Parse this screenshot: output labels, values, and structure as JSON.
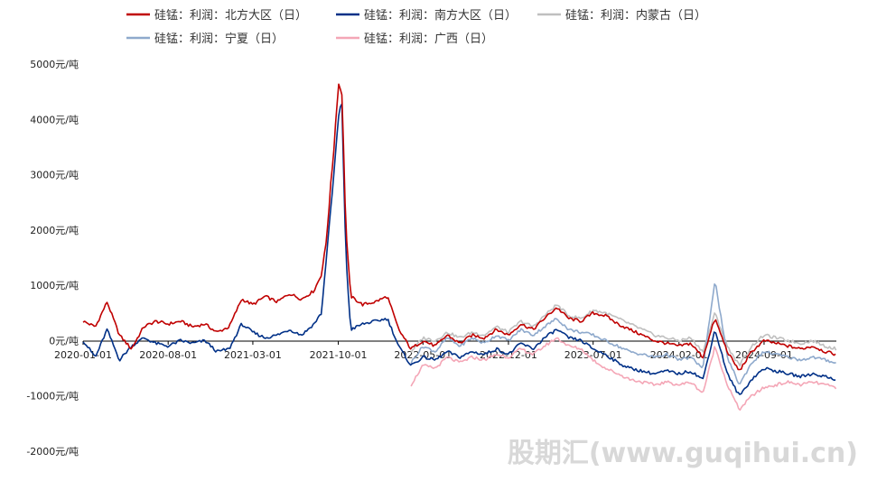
{
  "chart_data": {
    "type": "line",
    "title": "",
    "xlabel": "",
    "ylabel": "",
    "x_tick_labels": [
      "2020-01-01",
      "2020-08-01",
      "2021-03-01",
      "2021-10-01",
      "2022-05-01",
      "2022-12-01",
      "2023-07-01",
      "2024-02-01",
      "2024-09-01"
    ],
    "y_tick_labels": [
      "5000元/吨",
      "4000元/吨",
      "3000元/吨",
      "2000元/吨",
      "1000元/吨",
      "0元/吨",
      "-1000元/吨",
      "-2000元/吨"
    ],
    "ylim": [
      -2000,
      5000
    ],
    "legend_position": "top",
    "watermark": "股期汇(www.guqihui.cn)",
    "series": [
      {
        "name": "硅锰：利润：北方大区（日）",
        "color": "#c00000",
        "start": "2020-01-01",
        "points": [
          [
            "2020-01-01",
            350
          ],
          [
            "2020-02-01",
            250
          ],
          [
            "2020-03-01",
            700
          ],
          [
            "2020-04-01",
            100
          ],
          [
            "2020-05-01",
            -150
          ],
          [
            "2020-06-01",
            250
          ],
          [
            "2020-07-01",
            350
          ],
          [
            "2020-08-01",
            300
          ],
          [
            "2020-09-01",
            350
          ],
          [
            "2020-10-01",
            250
          ],
          [
            "2020-11-01",
            300
          ],
          [
            "2020-12-01",
            150
          ],
          [
            "2021-01-01",
            250
          ],
          [
            "2021-02-01",
            750
          ],
          [
            "2021-03-01",
            650
          ],
          [
            "2021-04-01",
            800
          ],
          [
            "2021-05-01",
            700
          ],
          [
            "2021-06-01",
            850
          ],
          [
            "2021-07-01",
            750
          ],
          [
            "2021-08-01",
            900
          ],
          [
            "2021-08-20",
            1200
          ],
          [
            "2021-09-01",
            1800
          ],
          [
            "2021-09-20",
            3500
          ],
          [
            "2021-10-01",
            4650
          ],
          [
            "2021-10-10",
            4500
          ],
          [
            "2021-10-20",
            2000
          ],
          [
            "2021-11-01",
            800
          ],
          [
            "2021-12-01",
            650
          ],
          [
            "2022-01-01",
            700
          ],
          [
            "2022-02-01",
            800
          ],
          [
            "2022-03-01",
            200
          ],
          [
            "2022-04-01",
            -150
          ],
          [
            "2022-05-01",
            0
          ],
          [
            "2022-06-01",
            -100
          ],
          [
            "2022-07-01",
            100
          ],
          [
            "2022-08-01",
            -50
          ],
          [
            "2022-09-01",
            100
          ],
          [
            "2022-10-01",
            50
          ],
          [
            "2022-11-01",
            200
          ],
          [
            "2022-12-01",
            100
          ],
          [
            "2023-01-01",
            300
          ],
          [
            "2023-02-01",
            200
          ],
          [
            "2023-03-01",
            400
          ],
          [
            "2023-04-01",
            600
          ],
          [
            "2023-05-01",
            400
          ],
          [
            "2023-06-01",
            350
          ],
          [
            "2023-07-01",
            500
          ],
          [
            "2023-08-01",
            450
          ],
          [
            "2023-09-01",
            300
          ],
          [
            "2023-10-01",
            200
          ],
          [
            "2023-11-01",
            100
          ],
          [
            "2023-12-01",
            0
          ],
          [
            "2024-01-01",
            -50
          ],
          [
            "2024-02-01",
            -100
          ],
          [
            "2024-03-01",
            -50
          ],
          [
            "2024-04-01",
            -300
          ],
          [
            "2024-05-01",
            400
          ],
          [
            "2024-06-01",
            -200
          ],
          [
            "2024-07-01",
            -550
          ],
          [
            "2024-08-01",
            -200
          ],
          [
            "2024-09-01",
            0
          ],
          [
            "2024-10-01",
            -50
          ],
          [
            "2024-11-01",
            -100
          ],
          [
            "2024-12-01",
            -150
          ],
          [
            "2025-01-01",
            -100
          ],
          [
            "2025-02-01",
            -200
          ],
          [
            "2025-03-01",
            -250
          ]
        ]
      },
      {
        "name": "硅锰：利润：南方大区（日）",
        "color": "#003087",
        "start": "2020-01-01",
        "points": [
          [
            "2020-01-01",
            0
          ],
          [
            "2020-02-01",
            -300
          ],
          [
            "2020-03-01",
            200
          ],
          [
            "2020-04-01",
            -350
          ],
          [
            "2020-05-01",
            -100
          ],
          [
            "2020-06-01",
            50
          ],
          [
            "2020-07-01",
            -50
          ],
          [
            "2020-08-01",
            -100
          ],
          [
            "2020-09-01",
            0
          ],
          [
            "2020-10-01",
            -50
          ],
          [
            "2020-11-01",
            0
          ],
          [
            "2020-12-01",
            -200
          ],
          [
            "2021-01-01",
            -150
          ],
          [
            "2021-02-01",
            300
          ],
          [
            "2021-03-01",
            150
          ],
          [
            "2021-04-01",
            50
          ],
          [
            "2021-05-01",
            100
          ],
          [
            "2021-06-01",
            200
          ],
          [
            "2021-07-01",
            100
          ],
          [
            "2021-08-01",
            300
          ],
          [
            "2021-08-20",
            500
          ],
          [
            "2021-09-01",
            1500
          ],
          [
            "2021-09-20",
            3000
          ],
          [
            "2021-10-01",
            4000
          ],
          [
            "2021-10-10",
            4300
          ],
          [
            "2021-10-20",
            1500
          ],
          [
            "2021-11-01",
            200
          ],
          [
            "2021-12-01",
            300
          ],
          [
            "2022-01-01",
            350
          ],
          [
            "2022-02-01",
            400
          ],
          [
            "2022-03-01",
            -100
          ],
          [
            "2022-04-01",
            -450
          ],
          [
            "2022-05-01",
            -300
          ],
          [
            "2022-06-01",
            -350
          ],
          [
            "2022-07-01",
            -200
          ],
          [
            "2022-08-01",
            -300
          ],
          [
            "2022-09-01",
            -200
          ],
          [
            "2022-10-01",
            -250
          ],
          [
            "2022-11-01",
            -150
          ],
          [
            "2022-12-01",
            -250
          ],
          [
            "2023-01-01",
            -50
          ],
          [
            "2023-02-01",
            -150
          ],
          [
            "2023-03-01",
            50
          ],
          [
            "2023-04-01",
            200
          ],
          [
            "2023-05-01",
            50
          ],
          [
            "2023-06-01",
            0
          ],
          [
            "2023-07-01",
            -150
          ],
          [
            "2023-08-01",
            -250
          ],
          [
            "2023-09-01",
            -400
          ],
          [
            "2023-10-01",
            -500
          ],
          [
            "2023-11-01",
            -550
          ],
          [
            "2023-12-01",
            -600
          ],
          [
            "2024-01-01",
            -550
          ],
          [
            "2024-02-01",
            -600
          ],
          [
            "2024-03-01",
            -550
          ],
          [
            "2024-04-01",
            -700
          ],
          [
            "2024-05-01",
            200
          ],
          [
            "2024-06-01",
            -600
          ],
          [
            "2024-07-01",
            -1000
          ],
          [
            "2024-08-01",
            -700
          ],
          [
            "2024-09-01",
            -500
          ],
          [
            "2024-10-01",
            -550
          ],
          [
            "2024-11-01",
            -600
          ],
          [
            "2024-12-01",
            -650
          ],
          [
            "2025-01-01",
            -600
          ],
          [
            "2025-02-01",
            -650
          ],
          [
            "2025-03-01",
            -700
          ]
        ]
      },
      {
        "name": "硅锰：利润：内蒙古（日）",
        "color": "#bfbfbf",
        "start": "2022-04-01",
        "points": [
          [
            "2022-04-01",
            -200
          ],
          [
            "2022-05-01",
            50
          ],
          [
            "2022-06-01",
            0
          ],
          [
            "2022-07-01",
            150
          ],
          [
            "2022-08-01",
            50
          ],
          [
            "2022-09-01",
            150
          ],
          [
            "2022-10-01",
            100
          ],
          [
            "2022-11-01",
            250
          ],
          [
            "2022-12-01",
            150
          ],
          [
            "2023-01-01",
            350
          ],
          [
            "2023-02-01",
            250
          ],
          [
            "2023-03-01",
            450
          ],
          [
            "2023-04-01",
            650
          ],
          [
            "2023-05-01",
            450
          ],
          [
            "2023-06-01",
            400
          ],
          [
            "2023-07-01",
            550
          ],
          [
            "2023-08-01",
            500
          ],
          [
            "2023-09-01",
            400
          ],
          [
            "2023-10-01",
            300
          ],
          [
            "2023-11-01",
            200
          ],
          [
            "2023-12-01",
            100
          ],
          [
            "2024-01-01",
            50
          ],
          [
            "2024-02-01",
            0
          ],
          [
            "2024-03-01",
            50
          ],
          [
            "2024-04-01",
            -200
          ],
          [
            "2024-05-01",
            500
          ],
          [
            "2024-06-01",
            -100
          ],
          [
            "2024-07-01",
            -450
          ],
          [
            "2024-08-01",
            -100
          ],
          [
            "2024-09-01",
            100
          ],
          [
            "2024-10-01",
            50
          ],
          [
            "2024-11-01",
            0
          ],
          [
            "2024-12-01",
            -50
          ],
          [
            "2025-01-01",
            0
          ],
          [
            "2025-02-01",
            -100
          ],
          [
            "2025-03-01",
            -150
          ]
        ]
      },
      {
        "name": "硅锰：利润：宁夏（日）",
        "color": "#8ea9cc",
        "start": "2022-04-01",
        "points": [
          [
            "2022-04-01",
            -400
          ],
          [
            "2022-05-01",
            -100
          ],
          [
            "2022-06-01",
            -200
          ],
          [
            "2022-07-01",
            50
          ],
          [
            "2022-08-01",
            -100
          ],
          [
            "2022-09-01",
            50
          ],
          [
            "2022-10-01",
            -50
          ],
          [
            "2022-11-01",
            100
          ],
          [
            "2022-12-01",
            0
          ],
          [
            "2023-01-01",
            200
          ],
          [
            "2023-02-01",
            100
          ],
          [
            "2023-03-01",
            250
          ],
          [
            "2023-04-01",
            400
          ],
          [
            "2023-05-01",
            200
          ],
          [
            "2023-06-01",
            150
          ],
          [
            "2023-07-01",
            100
          ],
          [
            "2023-08-01",
            0
          ],
          [
            "2023-09-01",
            -100
          ],
          [
            "2023-10-01",
            -200
          ],
          [
            "2023-11-01",
            -250
          ],
          [
            "2023-12-01",
            -300
          ],
          [
            "2024-01-01",
            -250
          ],
          [
            "2024-02-01",
            -350
          ],
          [
            "2024-03-01",
            -300
          ],
          [
            "2024-04-01",
            -500
          ],
          [
            "2024-05-01",
            1100
          ],
          [
            "2024-06-01",
            -300
          ],
          [
            "2024-07-01",
            -800
          ],
          [
            "2024-08-01",
            -400
          ],
          [
            "2024-09-01",
            -200
          ],
          [
            "2024-10-01",
            -250
          ],
          [
            "2024-11-01",
            -300
          ],
          [
            "2024-12-01",
            -350
          ],
          [
            "2025-01-01",
            -300
          ],
          [
            "2025-02-01",
            -350
          ],
          [
            "2025-03-01",
            -400
          ]
        ]
      },
      {
        "name": "硅锰：利润：广西（日）",
        "color": "#f4a6b6",
        "start": "2022-04-01",
        "points": [
          [
            "2022-04-01",
            -800
          ],
          [
            "2022-05-01",
            -450
          ],
          [
            "2022-06-01",
            -500
          ],
          [
            "2022-07-01",
            -300
          ],
          [
            "2022-08-01",
            -400
          ],
          [
            "2022-09-01",
            -300
          ],
          [
            "2022-10-01",
            -350
          ],
          [
            "2022-11-01",
            -250
          ],
          [
            "2022-12-01",
            -300
          ],
          [
            "2023-01-01",
            -150
          ],
          [
            "2023-02-01",
            -250
          ],
          [
            "2023-03-01",
            -100
          ],
          [
            "2023-04-01",
            50
          ],
          [
            "2023-05-01",
            -100
          ],
          [
            "2023-06-01",
            -150
          ],
          [
            "2023-07-01",
            -350
          ],
          [
            "2023-08-01",
            -500
          ],
          [
            "2023-09-01",
            -600
          ],
          [
            "2023-10-01",
            -700
          ],
          [
            "2023-11-01",
            -750
          ],
          [
            "2023-12-01",
            -800
          ],
          [
            "2024-01-01",
            -750
          ],
          [
            "2024-02-01",
            -800
          ],
          [
            "2024-03-01",
            -750
          ],
          [
            "2024-04-01",
            -950
          ],
          [
            "2024-05-01",
            -100
          ],
          [
            "2024-06-01",
            -800
          ],
          [
            "2024-07-01",
            -1250
          ],
          [
            "2024-08-01",
            -1000
          ],
          [
            "2024-09-01",
            -850
          ],
          [
            "2024-10-01",
            -800
          ],
          [
            "2024-11-01",
            -750
          ],
          [
            "2024-12-01",
            -800
          ],
          [
            "2025-01-01",
            -750
          ],
          [
            "2025-02-01",
            -800
          ],
          [
            "2025-03-01",
            -850
          ]
        ]
      }
    ]
  }
}
